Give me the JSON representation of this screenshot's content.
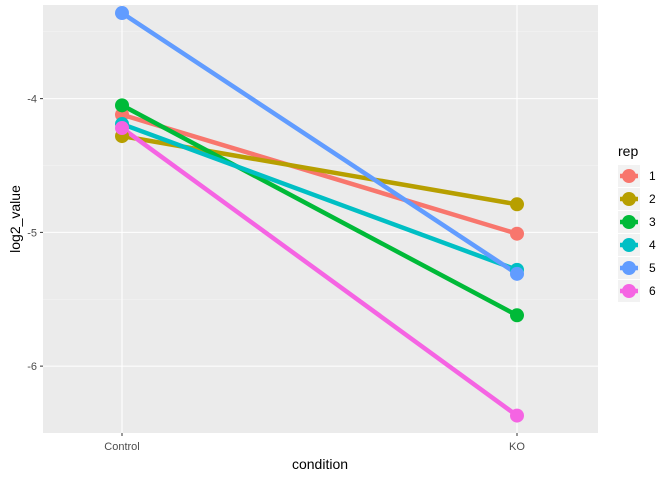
{
  "chart_data": {
    "type": "line",
    "title": "",
    "xlabel": "condition",
    "ylabel": "log2_value",
    "categories": [
      "Control",
      "KO"
    ],
    "ylim": [
      -6.5,
      -3.3
    ],
    "yticks": [
      -4,
      -5,
      -6
    ],
    "ytick_labels": [
      "-4",
      "-5",
      "-6"
    ],
    "grid": true,
    "legend": {
      "title": "rep",
      "position": "right"
    },
    "series": [
      {
        "name": "1",
        "color": "#F8766D",
        "values": [
          -4.12,
          -5.01
        ]
      },
      {
        "name": "2",
        "color": "#B79F00",
        "values": [
          -4.28,
          -4.79
        ]
      },
      {
        "name": "3",
        "color": "#00BA38",
        "values": [
          -4.05,
          -5.62
        ]
      },
      {
        "name": "4",
        "color": "#00BFC4",
        "values": [
          -4.19,
          -5.28
        ]
      },
      {
        "name": "5",
        "color": "#619CFF",
        "values": [
          -3.36,
          -5.31
        ]
      },
      {
        "name": "6",
        "color": "#F564E3",
        "values": [
          -4.22,
          -6.37
        ]
      }
    ]
  }
}
